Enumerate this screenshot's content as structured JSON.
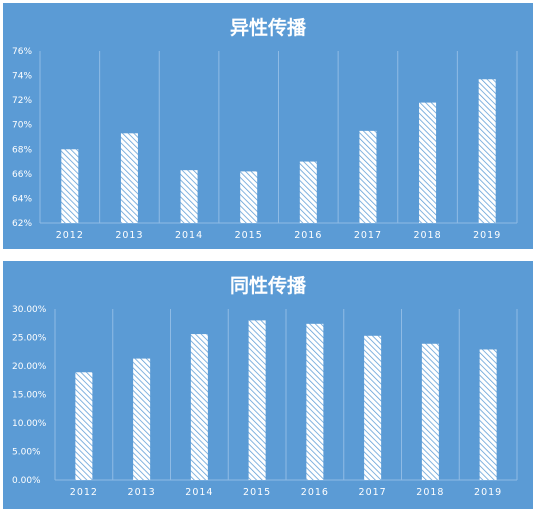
{
  "chart_data": [
    {
      "type": "bar",
      "title": "异性传播",
      "categories": [
        "2012",
        "2013",
        "2014",
        "2015",
        "2016",
        "2017",
        "2018",
        "2019"
      ],
      "values": [
        68.0,
        69.3,
        66.3,
        66.2,
        67.0,
        69.5,
        71.8,
        73.7
      ],
      "ylim": [
        62,
        76
      ],
      "yticks": [
        "62%",
        "64%",
        "66%",
        "68%",
        "70%",
        "72%",
        "74%",
        "76%"
      ],
      "background": "#5b9bd5",
      "bar_fill": "hatched white",
      "grid": "vertical"
    },
    {
      "type": "bar",
      "title": "同性传播",
      "categories": [
        "2012",
        "2013",
        "2014",
        "2015",
        "2016",
        "2017",
        "2018",
        "2019"
      ],
      "values": [
        18.9,
        21.3,
        25.6,
        28.0,
        27.4,
        25.3,
        23.9,
        22.9
      ],
      "ylim": [
        0,
        30
      ],
      "yticks": [
        "0.00%",
        "5.00%",
        "10.00%",
        "15.00%",
        "20.00%",
        "25.00%",
        "30.00%"
      ],
      "background": "#5b9bd5",
      "bar_fill": "hatched white",
      "grid": "vertical"
    }
  ]
}
